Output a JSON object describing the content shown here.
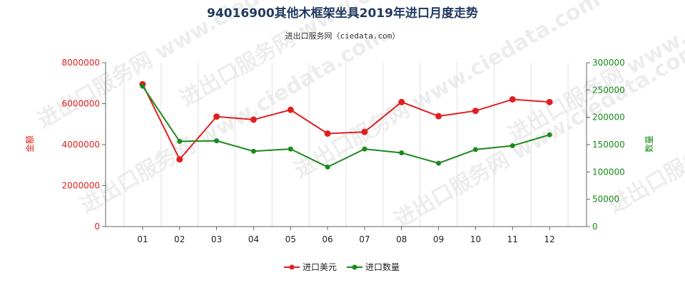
{
  "chart_data": {
    "type": "line",
    "title": "94016900其他木框架坐具2019年进口月度走势",
    "subtitle": "进出口服务网（ciedata.com）",
    "watermark": "进出口服务网 www.ciedata.com",
    "categories": [
      "01",
      "02",
      "03",
      "04",
      "05",
      "06",
      "07",
      "08",
      "09",
      "10",
      "11",
      "12"
    ],
    "y_left": {
      "label": "金额",
      "lim": [
        0,
        8000000
      ],
      "ticks": [
        0,
        2000000,
        4000000,
        6000000,
        8000000
      ],
      "color": "#e02020"
    },
    "y_right": {
      "label": "数量",
      "lim": [
        0,
        300000
      ],
      "ticks": [
        0,
        50000,
        100000,
        150000,
        200000,
        250000,
        300000
      ],
      "color": "#1a8a1a"
    },
    "series": [
      {
        "name": "进口美元",
        "axis": "left",
        "color": "#e02020",
        "values": [
          6950000,
          3280000,
          5370000,
          5220000,
          5700000,
          4540000,
          4620000,
          6080000,
          5390000,
          5650000,
          6210000,
          6080000
        ]
      },
      {
        "name": "进口数量",
        "axis": "right",
        "color": "#1a8a1a",
        "values": [
          257000,
          156000,
          157000,
          138000,
          142000,
          109000,
          142000,
          135000,
          116000,
          141000,
          148000,
          168000
        ]
      }
    ],
    "legend_position": "bottom-center",
    "grid": {
      "x": true,
      "y": false
    }
  }
}
